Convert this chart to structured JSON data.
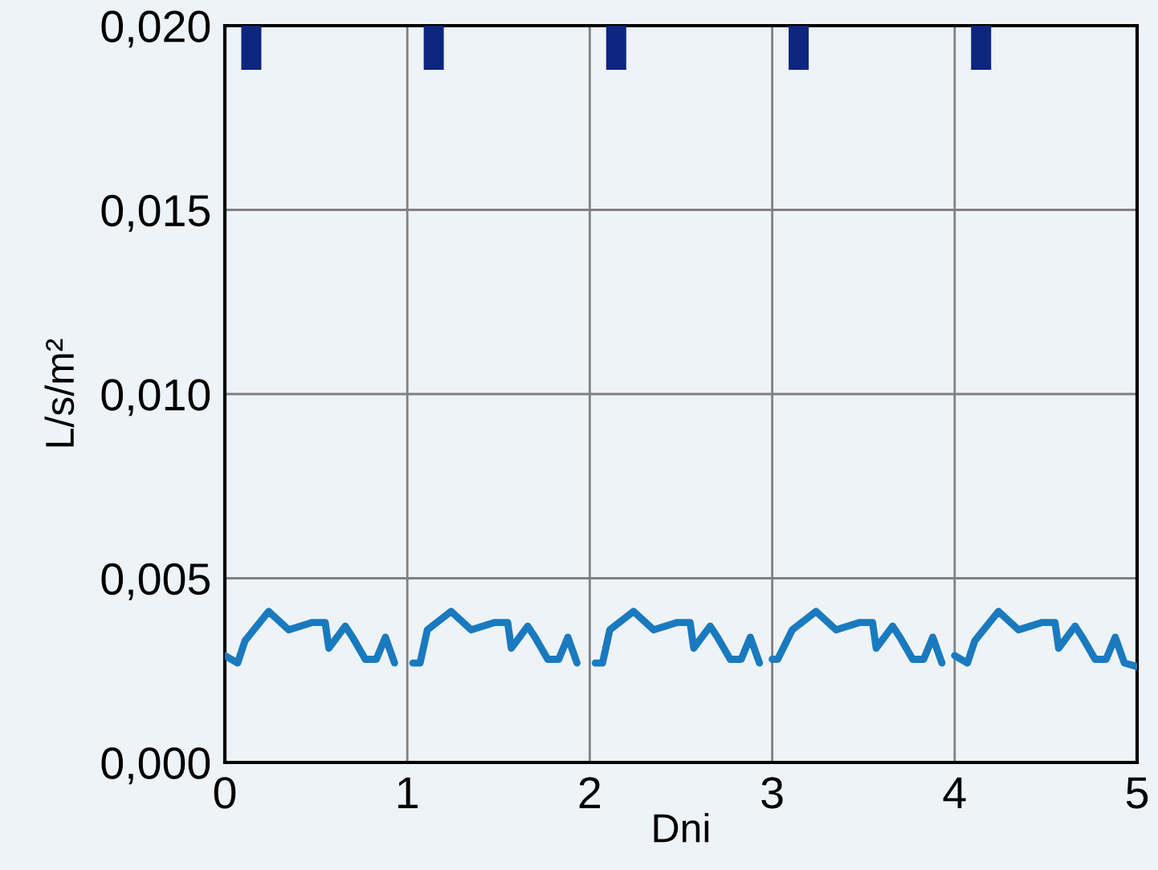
{
  "chart_data": {
    "type": "line",
    "xlabel": "Dni",
    "ylabel": "L/s/m²",
    "xlim": [
      0,
      5
    ],
    "xticks": [
      0,
      1,
      2,
      3,
      4,
      5
    ],
    "ylim": [
      0,
      0.02
    ],
    "yticks": [
      {
        "value": 0,
        "label": "0,000"
      },
      {
        "value": 0.005,
        "label": "0,005"
      },
      {
        "value": 0.01,
        "label": "0,010"
      },
      {
        "value": 0.015,
        "label": "0,015"
      },
      {
        "value": 0.02,
        "label": "0,020"
      }
    ],
    "grid": true,
    "marker": "none",
    "line_style": "solid",
    "series": [
      {
        "color": "#1a7abf",
        "x": [
          0.0,
          0.07,
          0.11,
          0.24,
          0.35,
          0.48,
          0.55,
          0.57,
          0.66,
          0.7,
          0.77,
          0.83,
          0.88,
          0.93,
          0.97,
          1.03,
          1.07,
          1.11,
          1.24,
          1.35,
          1.48,
          1.55,
          1.57,
          1.66,
          1.7,
          1.77,
          1.83,
          1.88,
          1.93,
          1.97,
          2.03,
          2.07,
          2.11,
          2.24,
          2.35,
          2.48,
          2.55,
          2.57,
          2.66,
          2.7,
          2.77,
          2.83,
          2.88,
          2.93,
          2.97,
          3.0,
          3.03,
          3.11,
          3.24,
          3.35,
          3.48,
          3.55,
          3.57,
          3.66,
          3.7,
          3.77,
          3.83,
          3.88,
          3.93,
          3.97,
          4.0,
          4.07,
          4.11,
          4.24,
          4.35,
          4.48,
          4.55,
          4.57,
          4.66,
          4.7,
          4.77,
          4.83,
          4.88,
          4.93,
          5.0
        ],
        "values": [
          0.0029,
          0.0027,
          0.0033,
          0.0041,
          0.0036,
          0.0038,
          0.0038,
          0.0031,
          0.0037,
          0.0034,
          0.0028,
          0.0028,
          0.0034,
          0.0027,
          null,
          0.0027,
          0.0027,
          0.0036,
          0.0041,
          0.0036,
          0.0038,
          0.0038,
          0.0031,
          0.0037,
          0.0034,
          0.0028,
          0.0028,
          0.0034,
          0.0027,
          null,
          0.0027,
          0.0027,
          0.0036,
          0.0041,
          0.0036,
          0.0038,
          0.0038,
          0.0031,
          0.0037,
          0.0034,
          0.0028,
          0.0028,
          0.0034,
          0.0027,
          null,
          0.0028,
          0.0028,
          0.0036,
          0.0041,
          0.0036,
          0.0038,
          0.0038,
          0.0031,
          0.0037,
          0.0034,
          0.0028,
          0.0028,
          0.0034,
          0.0027,
          null,
          0.0029,
          0.0027,
          0.0033,
          0.0041,
          0.0036,
          0.0038,
          0.0038,
          0.0031,
          0.0037,
          0.0034,
          0.0028,
          0.0028,
          0.0034,
          0.0027,
          0.0026
        ]
      },
      {
        "type": "bar",
        "color": "#0d2680",
        "x": [
          0.145,
          1.145,
          2.145,
          3.145,
          4.145
        ],
        "base": [
          0.0188,
          0.0188,
          0.0188,
          0.0188,
          0.0188
        ],
        "values": [
          0.0012,
          0.0012,
          0.0012,
          0.0012,
          0.0012
        ]
      }
    ]
  }
}
